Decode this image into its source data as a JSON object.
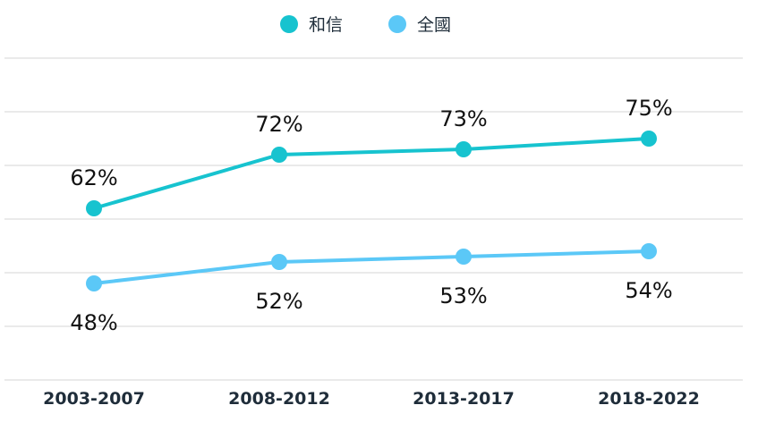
{
  "chart_data": {
    "type": "line",
    "categories": [
      "2003-2007",
      "2008-2012",
      "2013-2017",
      "2018-2022"
    ],
    "series": [
      {
        "name": "和信",
        "values": [
          62,
          72,
          73,
          75
        ],
        "labels": [
          "62%",
          "72%",
          "73%",
          "75%"
        ],
        "color": "#17c3cf"
      },
      {
        "name": "全國",
        "values": [
          48,
          52,
          53,
          54
        ],
        "labels": [
          "48%",
          "52%",
          "53%",
          "54%"
        ],
        "color": "#5bc8f7"
      }
    ],
    "legend_position": "top-center",
    "grid": true,
    "ylim": [
      30,
      90
    ]
  }
}
